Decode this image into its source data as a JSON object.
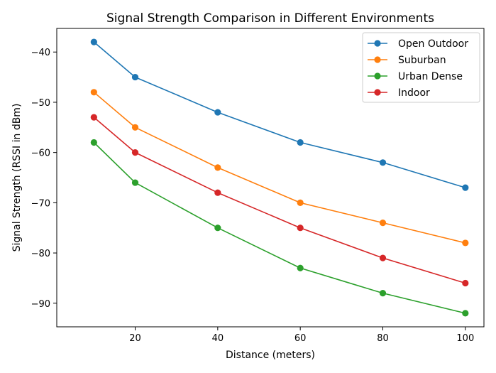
{
  "chart_data": {
    "type": "line",
    "title": "Signal Strength Comparison in Different Environments",
    "xlabel": "Distance (meters)",
    "ylabel": "Signal Strength (RSSI in dBm)",
    "x": [
      10,
      20,
      40,
      60,
      80,
      100
    ],
    "xticks": [
      20,
      40,
      60,
      80,
      100
    ],
    "yticks": [
      -40,
      -50,
      -60,
      -70,
      -80,
      -90
    ],
    "xlim": [
      1,
      104.5
    ],
    "ylim": [
      -94.7,
      -35.3
    ],
    "grid": false,
    "legend_position": "top-right",
    "series": [
      {
        "name": "Open Outdoor",
        "color": "#1f77b4",
        "values": [
          -38,
          -45,
          -52,
          -58,
          -62,
          -67
        ]
      },
      {
        "name": "Suburban",
        "color": "#ff7f0e",
        "values": [
          -48,
          -55,
          -63,
          -70,
          -74,
          -78
        ]
      },
      {
        "name": "Urban Dense",
        "color": "#2ca02c",
        "values": [
          -58,
          -66,
          -75,
          -83,
          -88,
          -92
        ]
      },
      {
        "name": "Indoor",
        "color": "#d62728",
        "values": [
          -53,
          -60,
          -68,
          -75,
          -81,
          -86
        ]
      }
    ]
  }
}
